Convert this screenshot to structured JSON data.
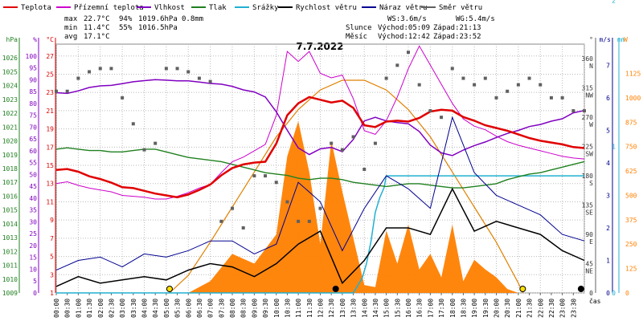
{
  "legend": [
    {
      "label": "Teplota",
      "color": "#e00000"
    },
    {
      "label": "Přízemní teplota",
      "color": "#cc00cc"
    },
    {
      "label": "Vlhkost",
      "color": "#8000c0"
    },
    {
      "label": "Tlak",
      "color": "#208020"
    },
    {
      "label": "Srážky",
      "color": "#20b0d0"
    },
    {
      "label": "Rychlost větru",
      "color": "#000000"
    },
    {
      "label": "Náraz větru",
      "color": "#000090"
    },
    {
      "label": "Směr větru",
      "color": "#606060"
    }
  ],
  "stats": {
    "max_label": "max",
    "max_temp": "22.7°C",
    "max_hum": "94%",
    "max_press": "1019.6hPa",
    "max_rain": "0.8mm",
    "min_label": "min",
    "min_temp": "11.4°C",
    "min_hum": "55%",
    "min_press": "1016.5hPa",
    "avg_label": "avg",
    "avg_temp": "17.1°C"
  },
  "wind_info": {
    "ws": "WS:3.6m/s",
    "wg": "WG:5.4m/s"
  },
  "sun_moon": {
    "sun": "Slunce",
    "sunrise": "Východ:05:09",
    "sunset": "Západ:21:13",
    "moon": "Měsíc",
    "moonrise": "Východ:12:42",
    "moonset": "Západ:23:52"
  },
  "colors": {
    "temp": "#e00000",
    "ground": "#cc00cc",
    "hum": "#8000c0",
    "press": "#208020",
    "rain": "#20b0d0",
    "speed": "#000000",
    "gust": "#000090",
    "dir": "#606060",
    "sun": "#e08000",
    "fill": "#ff8000",
    "watt": "#ff8000"
  },
  "axis_units": {
    "hpa": "hPa",
    "pct": "%",
    "degc": "°C",
    "deg": "°",
    "ms": "m/s",
    "mm": "mm",
    "w": "W",
    "cas": "čas"
  },
  "chart_data": {
    "type": "line",
    "title": "7.7.2022",
    "xlabel": "čas",
    "x_ticks": [
      "00:00",
      "00:30",
      "01:00",
      "01:30",
      "02:00",
      "02:30",
      "03:00",
      "03:30",
      "04:00",
      "04:30",
      "05:00",
      "05:30",
      "06:00",
      "06:30",
      "07:00",
      "07:30",
      "08:00",
      "08:30",
      "09:00",
      "09:30",
      "10:00",
      "10:30",
      "11:00",
      "11:30",
      "12:00",
      "12:30",
      "13:00",
      "13:30",
      "14:00",
      "14:30",
      "15:00",
      "15:30",
      "16:00",
      "16:30",
      "17:00",
      "17:30",
      "18:00",
      "18:30",
      "19:00",
      "19:30",
      "20:00",
      "20:30",
      "21:00",
      "21:30",
      "22:00",
      "22:30",
      "23:00",
      "23:30"
    ],
    "axes": {
      "pressure_hpa": {
        "range": [
          1009,
          1027
        ],
        "ticks": [
          1009,
          1010,
          1011,
          1012,
          1013,
          1014,
          1015,
          1016,
          1017,
          1018,
          1019,
          1020,
          1021,
          1022,
          1023,
          1024,
          1025,
          1026
        ]
      },
      "humidity_pct": {
        "range": [
          0,
          105
        ],
        "ticks": [
          0,
          5,
          10,
          15,
          20,
          25,
          30,
          35,
          40,
          45,
          50,
          55,
          60,
          65,
          70,
          75,
          80,
          85,
          90,
          95,
          100
        ]
      },
      "temperature_c": {
        "range": [
          1,
          28.3
        ],
        "ticks": [
          1,
          3,
          5,
          7,
          9,
          11,
          13,
          15,
          17,
          19,
          21,
          23,
          25,
          27
        ]
      },
      "wind_direction_deg": {
        "range": [
          0,
          382.5
        ],
        "ticks": [
          0,
          45,
          90,
          135,
          180,
          225,
          270,
          315,
          360
        ],
        "labels": [
          "",
          "NE",
          "E",
          "SE",
          "S",
          "SW",
          "W",
          "NW",
          "N"
        ]
      },
      "wind_speed_ms": {
        "range": [
          0,
          7.65
        ],
        "ticks": [
          0,
          1,
          2,
          3,
          4,
          5,
          6,
          7
        ]
      },
      "rain_mm": {
        "range": [
          0,
          1.7
        ],
        "ticks": [
          0,
          1,
          2
        ]
      },
      "solar_w": {
        "range": [
          0,
          1275
        ],
        "ticks": [
          0,
          125,
          250,
          375,
          500,
          625,
          750,
          875,
          1000,
          1125
        ]
      }
    },
    "series": [
      {
        "name": "Teplota",
        "unit": "°C",
        "x": [
          0,
          0.5,
          1,
          1.5,
          2,
          2.5,
          3,
          3.5,
          4,
          4.5,
          5,
          5.5,
          6,
          6.5,
          7,
          7.5,
          8,
          8.5,
          9,
          9.5,
          10,
          10.5,
          11,
          11.5,
          12,
          12.5,
          13,
          13.5,
          14,
          14.5,
          15,
          15.5,
          16,
          16.5,
          17,
          17.5,
          18,
          18.5,
          19,
          19.5,
          20,
          20.5,
          21,
          21.5,
          22,
          22.5,
          23,
          23.5,
          24
        ],
        "y": [
          14.5,
          14.6,
          14.3,
          13.8,
          13.5,
          13.1,
          12.6,
          12.5,
          12.2,
          11.9,
          11.7,
          11.5,
          11.8,
          12.3,
          12.9,
          13.9,
          14.7,
          15.1,
          15.3,
          15.4,
          17.4,
          20.5,
          21.8,
          22.5,
          22.2,
          21.9,
          22.1,
          21.3,
          19.4,
          19.2,
          19.8,
          19.9,
          19.8,
          20.2,
          20.9,
          21.1,
          21.0,
          20.3,
          19.9,
          19.4,
          19.1,
          18.8,
          18.4,
          18.0,
          17.7,
          17.5,
          17.3,
          17.0,
          16.9
        ]
      },
      {
        "name": "Přízemní teplota",
        "unit": "°C",
        "x": [
          0,
          0.5,
          1,
          1.5,
          2,
          2.5,
          3,
          3.5,
          4,
          4.5,
          5,
          5.5,
          6,
          6.5,
          7,
          7.5,
          8,
          8.5,
          9,
          9.5,
          10,
          10.5,
          11,
          11.5,
          12,
          12.5,
          13,
          13.5,
          14,
          14.5,
          15,
          15.5,
          16,
          16.5,
          17,
          17.5,
          18,
          18.5,
          19,
          19.5,
          20,
          20.5,
          21,
          21.5,
          22,
          22.5,
          23,
          23.5,
          24
        ],
        "y": [
          13.0,
          13.2,
          12.8,
          12.5,
          12.3,
          12.1,
          11.7,
          11.6,
          11.5,
          11.3,
          11.3,
          11.6,
          12.0,
          12.5,
          12.9,
          14.2,
          15.4,
          15.9,
          16.6,
          17.3,
          20.5,
          27.5,
          26.4,
          27.5,
          25.1,
          24.6,
          24.9,
          22.3,
          18.8,
          18.4,
          19.9,
          22.5,
          25.6,
          28.1,
          26.0,
          23.9,
          21.8,
          20.1,
          19.3,
          18.9,
          18.2,
          17.6,
          17.2,
          16.9,
          16.6,
          16.3,
          16.0,
          15.8,
          15.7
        ]
      },
      {
        "name": "Vlhkost",
        "unit": "%",
        "x": [
          0,
          0.5,
          1,
          1.5,
          2,
          2.5,
          3,
          3.5,
          4,
          4.5,
          5,
          5.5,
          6,
          6.5,
          7,
          7.5,
          8,
          8.5,
          9,
          9.5,
          10,
          10.5,
          11,
          11.5,
          12,
          12.5,
          13,
          13.5,
          14,
          14.5,
          15,
          15.5,
          16,
          16.5,
          17,
          17.5,
          18,
          18.5,
          19,
          19.5,
          20,
          20.5,
          21,
          21.5,
          22,
          22.5,
          23,
          23.5,
          24
        ],
        "y": [
          84.5,
          84.2,
          85.3,
          86.7,
          87.4,
          87.6,
          88.3,
          89.1,
          89.6,
          90.0,
          89.8,
          89.5,
          89.5,
          89.0,
          88.4,
          88.1,
          87.2,
          85.7,
          84.8,
          82.7,
          76.4,
          68.7,
          61.2,
          58.4,
          60.8,
          61.4,
          59.6,
          64.8,
          72.6,
          74.1,
          72.6,
          71.9,
          71.4,
          68.1,
          62.4,
          59.1,
          58.0,
          60.3,
          62.2,
          63.7,
          65.6,
          67.3,
          68.6,
          70.2,
          71.1,
          72.5,
          73.5,
          76.0,
          77.0
        ]
      },
      {
        "name": "Tlak",
        "unit": "hPa",
        "x": [
          0,
          0.5,
          1,
          1.5,
          2,
          2.5,
          3,
          3.5,
          4,
          4.5,
          5,
          5.5,
          6,
          6.5,
          7,
          7.5,
          8,
          8.5,
          9,
          9.5,
          10,
          10.5,
          11,
          11.5,
          12,
          12.5,
          13,
          13.5,
          14,
          14.5,
          15,
          15.5,
          16,
          16.5,
          17,
          17.5,
          18,
          18.5,
          19,
          19.5,
          20,
          20.5,
          21,
          21.5,
          22,
          22.5,
          23,
          23.5,
          24
        ],
        "y": [
          1019.4,
          1019.5,
          1019.4,
          1019.3,
          1019.3,
          1019.2,
          1019.2,
          1019.3,
          1019.4,
          1019.4,
          1019.2,
          1019.0,
          1018.8,
          1018.7,
          1018.6,
          1018.5,
          1018.3,
          1018.1,
          1017.9,
          1017.7,
          1017.6,
          1017.5,
          1017.3,
          1017.2,
          1017.3,
          1017.3,
          1017.2,
          1017.0,
          1016.9,
          1016.8,
          1016.7,
          1016.8,
          1016.9,
          1016.9,
          1016.8,
          1016.7,
          1016.6,
          1016.6,
          1016.7,
          1016.8,
          1016.9,
          1017.2,
          1017.4,
          1017.6,
          1017.7,
          1017.9,
          1018.1,
          1018.3,
          1018.5
        ]
      },
      {
        "name": "Srážky",
        "unit": "mm",
        "x": [
          0,
          13.5,
          13.7,
          13.9,
          14.1,
          14.3,
          14.5,
          14.7,
          14.9,
          15.0,
          24
        ],
        "y": [
          0,
          0,
          0.05,
          0.1,
          0.2,
          0.35,
          0.55,
          0.65,
          0.72,
          0.8,
          0.8
        ]
      },
      {
        "name": "Rychlost větru",
        "unit": "m/s",
        "x": [
          0,
          1,
          2,
          3,
          4,
          5,
          6,
          7,
          8,
          9,
          10,
          11,
          12,
          13,
          14,
          15,
          16,
          17,
          18,
          19,
          20,
          21,
          22,
          23,
          24
        ],
        "y": [
          0.2,
          0.5,
          0.3,
          0.4,
          0.5,
          0.4,
          0.7,
          0.9,
          0.8,
          0.5,
          0.9,
          1.5,
          1.9,
          0.3,
          1.0,
          2.0,
          2.0,
          1.8,
          3.2,
          1.9,
          2.2,
          2.0,
          1.8,
          1.3,
          1.0
        ]
      },
      {
        "name": "Náraz větru",
        "unit": "m/s",
        "x": [
          0,
          1,
          2,
          3,
          4,
          5,
          6,
          7,
          8,
          9,
          10,
          11,
          12,
          13,
          14,
          15,
          16,
          17,
          18,
          19,
          20,
          21,
          22,
          23,
          24
        ],
        "y": [
          0.7,
          1.0,
          1.1,
          0.8,
          1.2,
          1.1,
          1.3,
          1.6,
          1.6,
          1.2,
          1.5,
          3.4,
          2.8,
          1.3,
          2.6,
          3.6,
          3.2,
          2.6,
          5.4,
          3.7,
          3.0,
          2.7,
          2.4,
          1.8,
          1.6
        ]
      },
      {
        "name": "Směr větru",
        "unit": "°",
        "x": [
          0,
          0.5,
          1,
          1.5,
          2,
          2.5,
          3,
          3.5,
          4,
          4.5,
          5,
          5.5,
          6,
          6.5,
          7,
          7.5,
          8,
          8.5,
          9,
          9.5,
          10,
          10.5,
          11,
          11.5,
          12,
          12.5,
          13,
          13.5,
          14,
          14.5,
          15,
          15.5,
          16,
          16.5,
          17,
          17.5,
          18,
          18.5,
          19,
          19.5,
          20,
          20.5,
          21,
          21.5,
          22,
          22.5,
          23,
          23.5,
          24
        ],
        "y": [
          310,
          310,
          330,
          340,
          345,
          345,
          300,
          260,
          220,
          230,
          345,
          345,
          340,
          330,
          325,
          110,
          130,
          100,
          180,
          180,
          170,
          140,
          110,
          110,
          130,
          230,
          220,
          240,
          190,
          230,
          330,
          350,
          370,
          320,
          280,
          270,
          345,
          330,
          320,
          330,
          300,
          310,
          320,
          330,
          320,
          300,
          300,
          280,
          280
        ]
      },
      {
        "name": "Solar",
        "unit": "W",
        "x": [
          0,
          5,
          6,
          7,
          8,
          9,
          10,
          10.5,
          11,
          11.5,
          12,
          12.5,
          13,
          13.5,
          14,
          14.5,
          15,
          15.5,
          16,
          16.5,
          17,
          17.5,
          18,
          18.5,
          19,
          19.5,
          20,
          20.5,
          21,
          24
        ],
        "y": [
          0,
          0,
          0,
          60,
          200,
          150,
          300,
          700,
          880,
          620,
          250,
          780,
          520,
          280,
          40,
          30,
          320,
          150,
          350,
          120,
          200,
          80,
          350,
          60,
          170,
          120,
          80,
          20,
          0,
          0
        ]
      },
      {
        "name": "Sun elevation",
        "unit": "W",
        "x": [
          5.15,
          6,
          7,
          8,
          9,
          10,
          11,
          12,
          13,
          14,
          15,
          16,
          17,
          18,
          19,
          20,
          21,
          21.2
        ],
        "y": [
          0,
          90,
          260,
          440,
          620,
          800,
          940,
          1040,
          1090,
          1090,
          1040,
          940,
          800,
          620,
          440,
          260,
          50,
          0
        ]
      }
    ],
    "markers": [
      {
        "x": 5.15,
        "type": "sunrise"
      },
      {
        "x": 21.2,
        "type": "sunset"
      },
      {
        "x": 12.7,
        "type": "moonrise"
      },
      {
        "x": 23.85,
        "type": "moonset"
      }
    ],
    "grid": true,
    "legend_position": "top"
  }
}
